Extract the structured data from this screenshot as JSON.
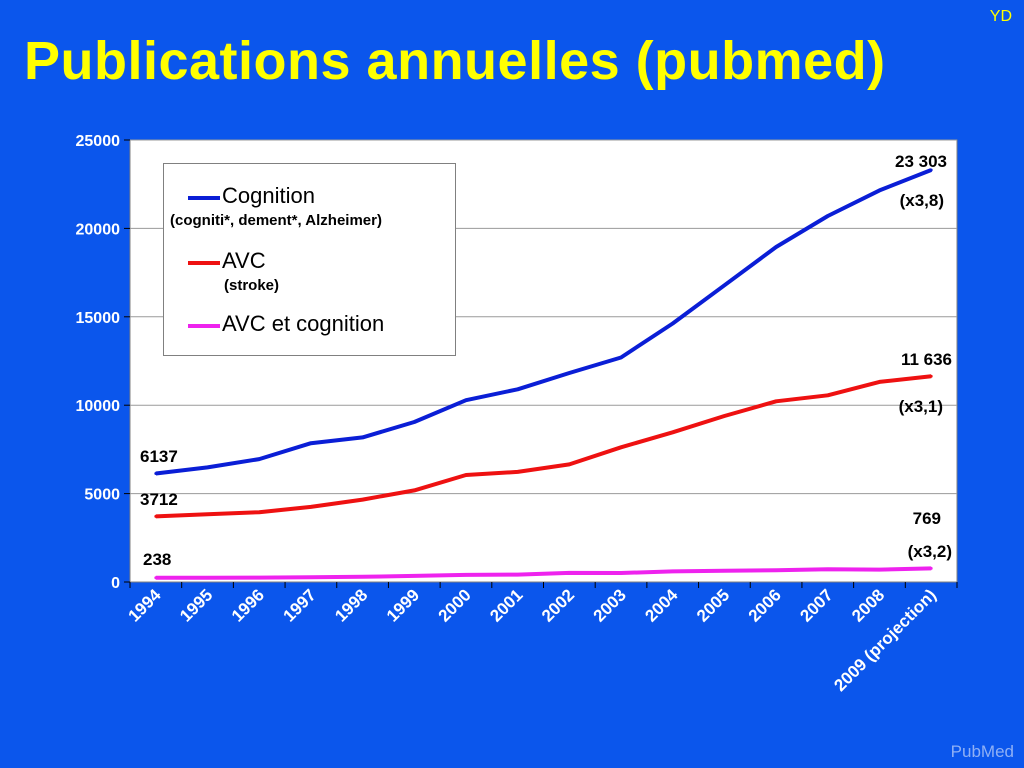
{
  "slide": {
    "corner_tag": "YD",
    "title": "Publications annuelles (pubmed)",
    "watermark": "PubMed"
  },
  "chart_data": {
    "type": "line",
    "title": "",
    "xlabel": "",
    "ylabel": "",
    "categories": [
      "1994",
      "1995",
      "1996",
      "1997",
      "1998",
      "1999",
      "2000",
      "2001",
      "2002",
      "2003",
      "2004",
      "2005",
      "2006",
      "2007",
      "2008",
      "2009 (projection)"
    ],
    "ylim": [
      0,
      25000
    ],
    "yticks": [
      0,
      5000,
      10000,
      15000,
      20000,
      25000
    ],
    "grid": true,
    "legend_position": "top-left",
    "series": [
      {
        "name": "Cognition",
        "subtitle": "(cogniti*, dement*, Alzheimer)",
        "color": "#0a1ed6",
        "values": [
          6137,
          6480,
          6950,
          7850,
          8180,
          9050,
          10280,
          10900,
          11820,
          12700,
          14620,
          16780,
          18950,
          20700,
          22150,
          23303
        ]
      },
      {
        "name": "AVC",
        "subtitle": "(stroke)",
        "color": "#ee1111",
        "values": [
          3712,
          3830,
          3950,
          4250,
          4660,
          5180,
          6050,
          6230,
          6650,
          7620,
          8470,
          9390,
          10220,
          10560,
          11320,
          11636
        ]
      },
      {
        "name": "AVC et cognition",
        "subtitle": "",
        "color": "#ee22ee",
        "values": [
          238,
          240,
          250,
          265,
          295,
          345,
          400,
          420,
          515,
          510,
          600,
          640,
          670,
          720,
          700,
          769
        ]
      }
    ],
    "annotations": [
      {
        "text": "6137"
      },
      {
        "text": "3712"
      },
      {
        "text": "238"
      },
      {
        "text": "23 303"
      },
      {
        "text": "(x3,8)"
      },
      {
        "text": "11 636"
      },
      {
        "text": "(x3,1)"
      },
      {
        "text": "769"
      },
      {
        "text": "(x3,2)"
      }
    ]
  }
}
